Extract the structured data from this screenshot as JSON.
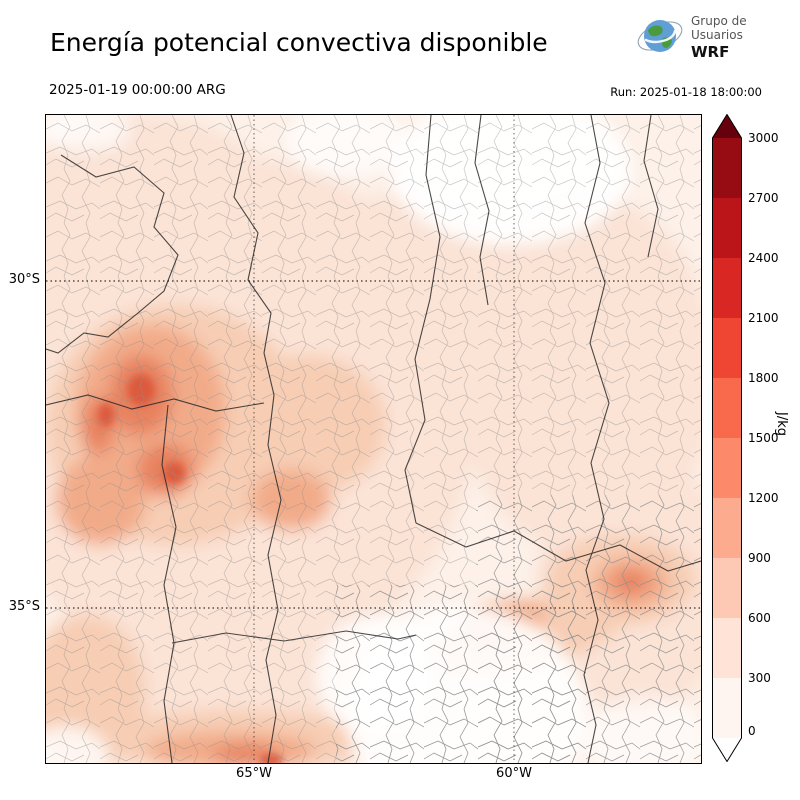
{
  "header": {
    "title": "Energía potencial convectiva disponible",
    "logo": {
      "org_line1": "Grupo de",
      "org_line2": "Usuarios",
      "org_line3": "WRF"
    },
    "valid_time": "2025-01-19 00:00:00 ARG",
    "run_time": "Run: 2025-01-18 18:00:00"
  },
  "map": {
    "y_axis_labels": [
      "30°S",
      "35°S"
    ],
    "x_axis_labels": [
      "65°W",
      "60°W"
    ]
  },
  "colorbar": {
    "unit": "J/kg",
    "tick_labels": [
      "3000",
      "2700",
      "2400",
      "2100",
      "1800",
      "1500",
      "1200",
      "900",
      "600",
      "300",
      "0"
    ],
    "segment_colors_top_to_bottom": [
      "#970b13",
      "#bb151a",
      "#d92723",
      "#ef4533",
      "#f9694c",
      "#fc8a6a",
      "#fcab8f",
      "#fdc9b4",
      "#fee3d6",
      "#fff5f0"
    ],
    "over_color": "#67000d",
    "under_color": "#ffffff"
  }
}
